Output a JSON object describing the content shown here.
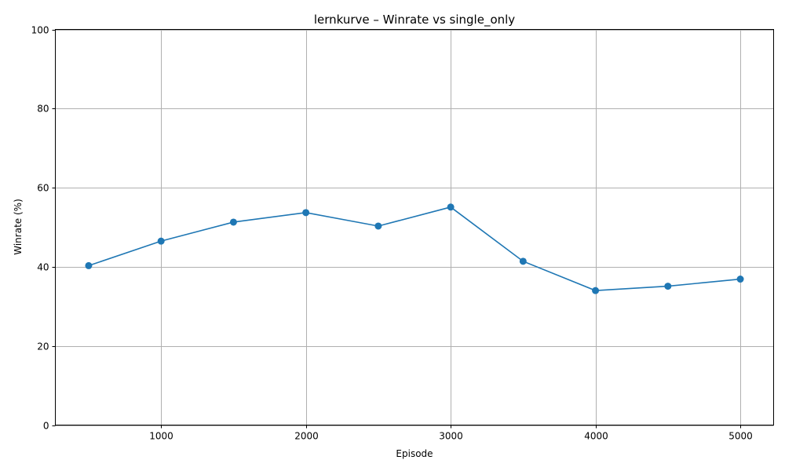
{
  "chart_data": {
    "type": "line",
    "title": "lernkurve – Winrate vs single_only",
    "xlabel": "Episode",
    "ylabel": "Winrate (%)",
    "xlim": [
      270,
      5230
    ],
    "ylim": [
      0,
      100
    ],
    "xticks": [
      1000,
      2000,
      3000,
      4000,
      5000
    ],
    "yticks": [
      0,
      20,
      40,
      60,
      80,
      100
    ],
    "grid": true,
    "series": [
      {
        "color": "#1f77b4",
        "marker": "circle",
        "x": [
          500,
          1000,
          1500,
          2000,
          2500,
          3000,
          3500,
          4000,
          4500,
          5000
        ],
        "y": [
          40.3,
          46.5,
          51.3,
          53.7,
          50.3,
          55.1,
          41.4,
          34.0,
          35.1,
          36.9
        ]
      }
    ]
  }
}
